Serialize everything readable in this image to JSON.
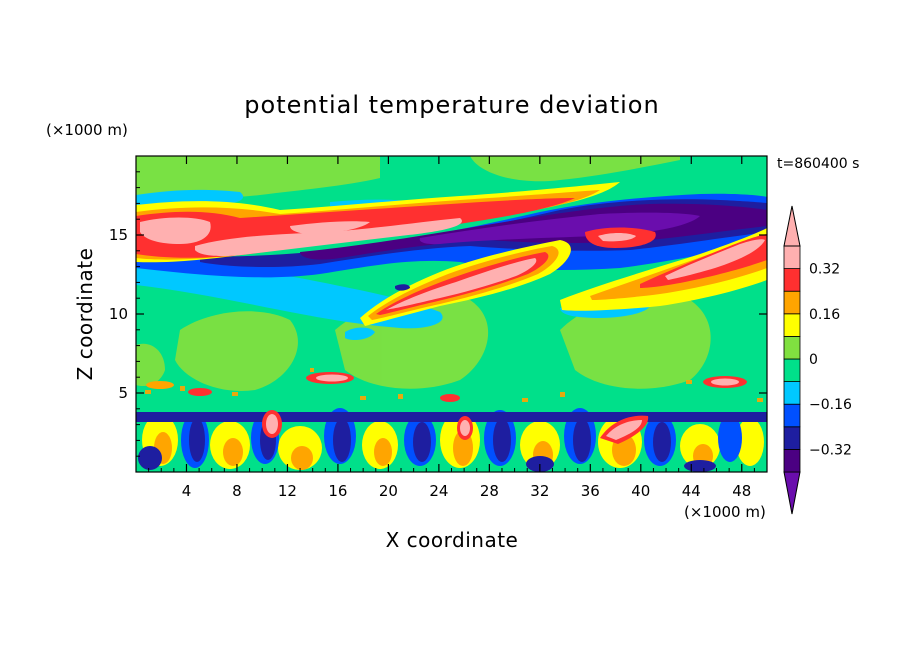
{
  "chart_data": {
    "type": "heatmap",
    "title": "potential temperature deviation",
    "time_label": "t=860400 s",
    "xlabel": "X coordinate",
    "ylabel": "Z coordinate",
    "x_unit": "(×1000 m)",
    "y_unit": "(×1000 m)",
    "xlim": [
      0,
      50
    ],
    "ylim": [
      0,
      20
    ],
    "x_ticks": [
      4,
      8,
      12,
      16,
      20,
      24,
      28,
      32,
      36,
      40,
      44,
      48
    ],
    "y_ticks": [
      5,
      10,
      15
    ],
    "colorbar": {
      "levels": [
        -0.4,
        -0.32,
        -0.24,
        -0.16,
        -0.08,
        0,
        0.08,
        0.16,
        0.24,
        0.32,
        0.4
      ],
      "tick_labels": [
        "0.32",
        "0.16",
        "0",
        "−0.16",
        "−0.32"
      ],
      "tick_values": [
        0.32,
        0.16,
        0,
        -0.16,
        -0.32
      ],
      "colors": [
        "#6a0dad",
        "#4b0082",
        "#1e1ea0",
        "#0050ff",
        "#00c8ff",
        "#00e08a",
        "#80e040",
        "#ffff00",
        "#ffa500",
        "#ff3030",
        "#ffb0b0"
      ]
    },
    "features": [
      {
        "name": "upper warm band",
        "x_range": [
          0,
          50
        ],
        "z_range": [
          13,
          17
        ],
        "sign": "positive"
      },
      {
        "name": "upper cold band",
        "x_range": [
          14,
          50
        ],
        "z_range": [
          12.5,
          16.5
        ],
        "sign": "negative"
      },
      {
        "name": "rising warm tongue",
        "x_range": [
          18,
          50
        ],
        "z_range": [
          10,
          15.5
        ],
        "sign": "positive"
      },
      {
        "name": "boundary-layer convection",
        "x_range": [
          0,
          50
        ],
        "z_range": [
          0,
          6
        ],
        "sign": "mixed"
      }
    ]
  }
}
